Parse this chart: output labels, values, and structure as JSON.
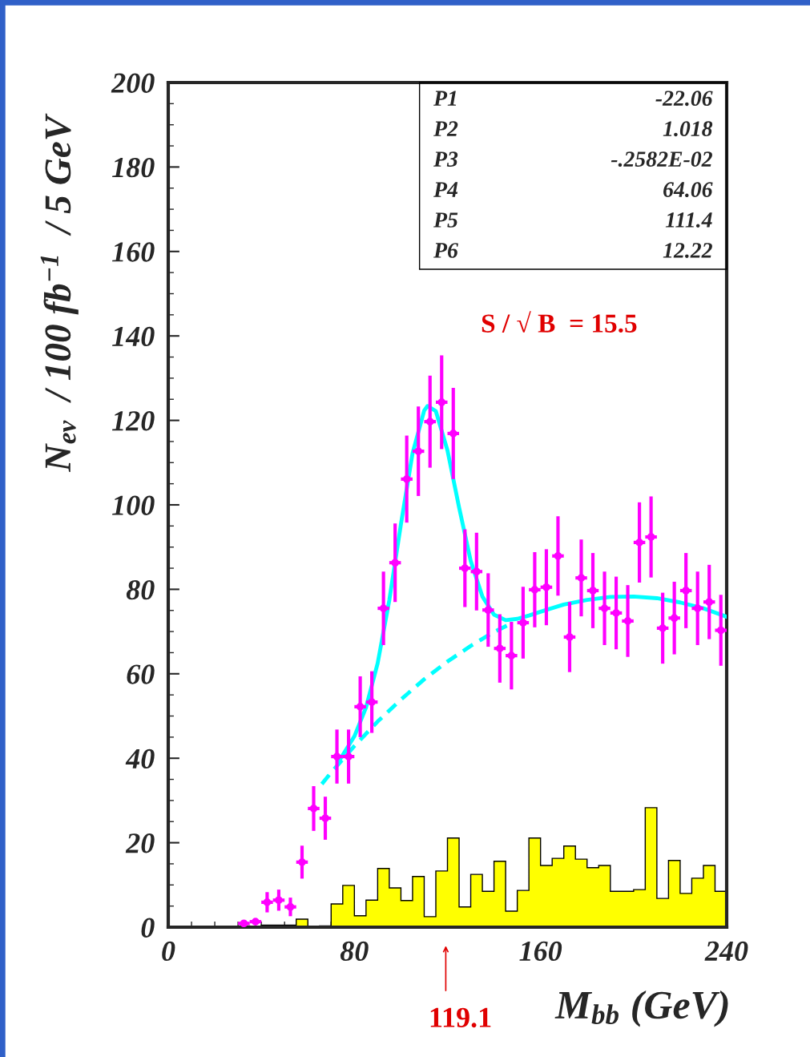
{
  "chart_data": {
    "type": "histogram",
    "xlabel": "M$_{bb}$ (GeV)",
    "ylabel": "N$_{ev}$  / 100 fb$^{−1}$  / 5 GeV",
    "bins": [
      0,
      5,
      10,
      15,
      20,
      25,
      30,
      35,
      40,
      45,
      50,
      55,
      60,
      65,
      70,
      75,
      80,
      85,
      90,
      95,
      100,
      105,
      110,
      115,
      120,
      125,
      130,
      135,
      140,
      145,
      150,
      155,
      160,
      165,
      170,
      175,
      180,
      185,
      190,
      195,
      200,
      205,
      210,
      215,
      220,
      225,
      230,
      235,
      240
    ],
    "values": [
      0,
      0,
      0,
      0,
      0,
      0,
      0.3,
      0,
      0.5,
      0.5,
      0.5,
      1.9,
      0,
      0.3,
      5.5,
      9.9,
      2.7,
      6.4,
      13.9,
      9.3,
      6.3,
      12.0,
      2.5,
      13.3,
      21.1,
      4.8,
      12.5,
      8.5,
      15.6,
      3.8,
      8.7,
      21.1,
      14.6,
      16.3,
      19.2,
      16.1,
      14.1,
      14.6,
      8.5,
      8.5,
      8.9,
      28.3,
      6.8,
      15.8,
      8.0,
      11.6,
      14.6,
      8.5
    ],
    "color": "#ffff00",
    "series": [
      {
        "type": "scatter",
        "color": "#ff00ff",
        "marker": "circle",
        "x": [
          32.5,
          37.5,
          42.5,
          47.5,
          52.5,
          57.5,
          62.5,
          67.5,
          72.5,
          77.5,
          82.5,
          87.5,
          92.5,
          97.5,
          102.5,
          107.5,
          112.5,
          117.5,
          122.5,
          127.5,
          132.5,
          137.5,
          142.5,
          147.5,
          152.5,
          157.5,
          162.5,
          167.5,
          172.5,
          177.5,
          182.5,
          187.5,
          192.5,
          197.5,
          202.5,
          207.5,
          212.5,
          217.5,
          222.5,
          227.5,
          232.5,
          237.5
        ],
        "values": [
          0.9,
          1.3,
          5.9,
          6.4,
          4.8,
          15.4,
          28.1,
          25.8,
          40.4,
          40.4,
          52.2,
          53.3,
          75.5,
          86.3,
          106.1,
          112.7,
          119.7,
          124.3,
          116.9,
          85.0,
          84.2,
          75.1,
          66.0,
          64.3,
          72.1,
          79.9,
          80.5,
          87.9,
          68.7,
          82.7,
          79.7,
          75.5,
          74.4,
          72.5,
          91.1,
          92.4,
          70.8,
          73.2,
          79.7,
          75.5,
          77.0,
          70.3
        ],
        "errors": [
          null,
          null,
          2.4,
          2.5,
          2.2,
          3.9,
          5.3,
          5.1,
          6.4,
          6.4,
          7.2,
          7.3,
          8.7,
          9.3,
          10.3,
          10.6,
          10.9,
          11.1,
          10.8,
          9.2,
          9.2,
          8.7,
          8.1,
          8.0,
          8.5,
          8.9,
          9.0,
          9.4,
          8.3,
          9.1,
          8.9,
          8.7,
          8.6,
          8.5,
          9.5,
          9.6,
          8.4,
          8.6,
          8.9,
          8.7,
          8.8,
          8.4
        ],
        "xerrors": [
          2.5,
          2.5,
          2.5,
          2.5,
          2.5,
          2.5,
          2.5,
          2.5,
          2.5,
          2.5,
          2.5,
          2.5,
          2.5,
          2.5,
          2.5,
          2.5,
          2.5,
          2.5,
          2.5,
          2.5,
          2.5,
          2.5,
          2.5,
          2.5,
          2.5,
          2.5,
          2.5,
          2.5,
          2.5,
          2.5,
          2.5,
          2.5,
          2.5,
          2.5,
          2.5,
          2.5,
          2.5,
          2.5,
          2.5,
          2.5,
          2.5,
          2.5
        ]
      },
      {
        "type": "line",
        "color": "#00ffff",
        "line_style": "solid",
        "x": [
          73,
          80,
          85,
          90,
          95,
          100,
          105,
          110,
          111.4,
          115,
          120,
          125,
          130,
          135,
          140,
          145,
          150,
          155,
          160,
          170,
          180,
          190,
          200,
          210,
          220,
          230,
          240
        ],
        "values": [
          39.0,
          45.2,
          52.0,
          62.5,
          77.4,
          95.4,
          112.2,
          122.3,
          123.4,
          122.2,
          112.9,
          99.4,
          86.7,
          78.3,
          74.0,
          72.7,
          73.0,
          73.8,
          74.7,
          76.4,
          77.5,
          78.2,
          78.3,
          77.9,
          76.9,
          75.5,
          73.5
        ]
      },
      {
        "type": "line",
        "color": "#00ffff",
        "line_style": "dashed",
        "x": [
          66,
          70,
          80,
          90,
          100,
          110,
          120,
          130,
          140,
          147
        ],
        "values": [
          33.9,
          36.6,
          42.9,
          48.7,
          53.9,
          58.7,
          62.9,
          66.6,
          69.9,
          71.8
        ]
      }
    ],
    "xlim": [
      0,
      240
    ],
    "xticks": [
      0,
      80,
      160,
      240
    ],
    "ylim": [
      0,
      200
    ],
    "yticks": [
      0,
      20,
      40,
      60,
      80,
      100,
      120,
      140,
      160,
      180,
      200
    ],
    "grid": false,
    "legend": false,
    "annotations": [
      "P1",
      "-22.06",
      "P2",
      "1.018",
      "P3",
      "-.2582E-02",
      "P4",
      "64.06",
      "P5",
      "111.4",
      "P6",
      "12.22",
      "S / √ B  = 15.5",
      "119.1"
    ]
  }
}
